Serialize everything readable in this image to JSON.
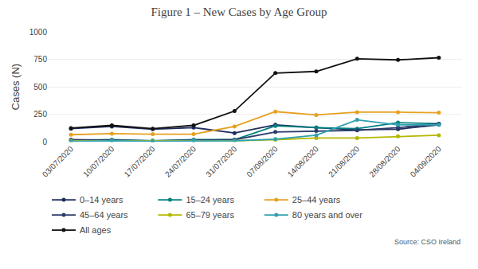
{
  "chart_data": {
    "type": "line",
    "title": "Figure 1 – New Cases by Age Group",
    "ylabel": "Cases (N)",
    "annotations": [
      "Source: CSO Ireland"
    ],
    "categories": [
      "03/07/2020",
      "10/07/2020",
      "17/07/2020",
      "24/07/2020",
      "31/07/2020",
      "07/08/2020",
      "14/08/2020",
      "21/08/2020",
      "28/08/2020",
      "04/09/2020"
    ],
    "series": [
      {
        "name": "0–14 years",
        "color": "#1f2d5c",
        "values": [
          120,
          140,
          115,
          130,
          80,
          155,
          130,
          110,
          115,
          155
        ]
      },
      {
        "name": "15–24 years",
        "color": "#008080",
        "values": [
          15,
          20,
          10,
          20,
          20,
          145,
          130,
          120,
          175,
          165
        ]
      },
      {
        "name": "25–44 years",
        "color": "#e8a020",
        "values": [
          65,
          75,
          70,
          70,
          140,
          275,
          245,
          270,
          270,
          265
        ]
      },
      {
        "name": "45–64 years",
        "color": "#2a3d6b",
        "values": [
          20,
          15,
          10,
          15,
          20,
          90,
          100,
          105,
          130,
          165
        ]
      },
      {
        "name": "65–79 years",
        "color": "#b5b800",
        "values": [
          10,
          10,
          10,
          10,
          10,
          20,
          35,
          35,
          50,
          60
        ]
      },
      {
        "name": "80 years and over",
        "color": "#30a0b0",
        "values": [
          5,
          10,
          5,
          10,
          10,
          25,
          60,
          200,
          155,
          155
        ]
      },
      {
        "name": "All ages",
        "color": "#111111",
        "values": [
          125,
          150,
          120,
          150,
          280,
          625,
          640,
          755,
          745,
          765
        ]
      }
    ],
    "ylim": [
      0,
      1000
    ],
    "yticks": [
      0,
      250,
      500,
      750,
      1000
    ],
    "grid": true,
    "legend": "bottom",
    "marker": "circle"
  }
}
